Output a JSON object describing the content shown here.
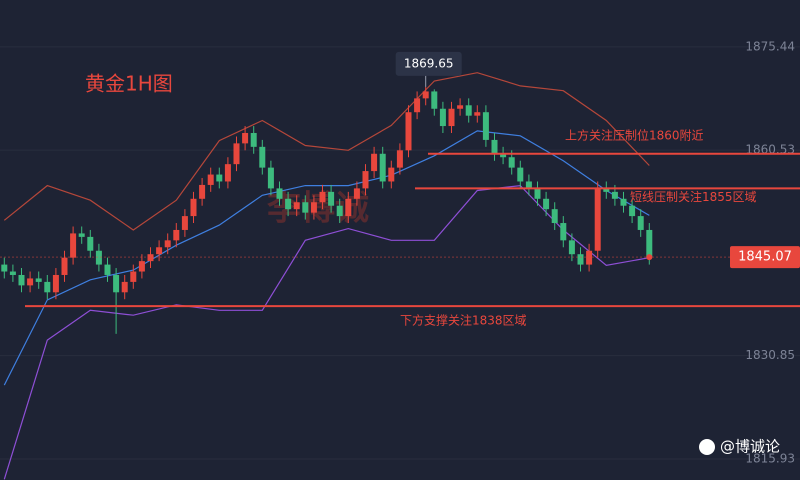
{
  "chart_data": {
    "type": "candlestick",
    "title": "黄金1H图",
    "watermark": "李博诚",
    "footer": "@博诚论",
    "up_color": "#e8473d",
    "down_color": "#3dbb7e",
    "open": [
      1844.0,
      1843.0,
      1842.5,
      1841.0,
      1842.0,
      1841.5,
      1840.0,
      1842.5,
      1845.0,
      1848.5,
      1848.0,
      1846.0,
      1844.0,
      1842.5,
      1840.0,
      1841.5,
      1843.0,
      1844.5,
      1845.5,
      1846.5,
      1847.5,
      1849.0,
      1851.0,
      1853.5,
      1855.5,
      1857.0,
      1856.0,
      1858.5,
      1861.5,
      1863.0,
      1861.0,
      1858.0,
      1855.0,
      1853.5,
      1852.0,
      1853.0,
      1851.5,
      1853.0,
      1854.5,
      1852.5,
      1851.0,
      1853.5,
      1855.0,
      1857.5,
      1860.0,
      1856.0,
      1858.0,
      1860.5,
      1866.0,
      1868.0,
      1869.0,
      1866.5,
      1864.0,
      1866.5,
      1867.0,
      1865.5,
      1866.0,
      1862.0,
      1860.0,
      1859.5,
      1858.0,
      1856.0,
      1855.0,
      1853.5,
      1852.0,
      1850.0,
      1847.5,
      1845.5,
      1844.0,
      1846.0,
      1855.0,
      1854.5,
      1853.5,
      1852.5,
      1851.0,
      1849.0
    ],
    "high": [
      1845.0,
      1844.0,
      1843.5,
      1843.0,
      1843.0,
      1842.5,
      1843.5,
      1846.0,
      1849.5,
      1849.5,
      1849.0,
      1847.0,
      1845.0,
      1843.5,
      1842.5,
      1844.0,
      1845.5,
      1846.5,
      1847.5,
      1848.5,
      1850.0,
      1852.0,
      1854.5,
      1856.5,
      1858.0,
      1858.0,
      1859.5,
      1862.5,
      1864.0,
      1864.0,
      1862.0,
      1859.0,
      1856.0,
      1854.5,
      1854.0,
      1854.0,
      1854.0,
      1855.5,
      1855.5,
      1853.5,
      1854.5,
      1856.0,
      1858.5,
      1861.0,
      1861.0,
      1859.0,
      1861.5,
      1867.0,
      1869.0,
      1869.65,
      1869.3,
      1867.5,
      1867.5,
      1868.0,
      1868.0,
      1867.0,
      1867.0,
      1863.0,
      1861.0,
      1860.5,
      1859.0,
      1857.0,
      1856.0,
      1854.5,
      1853.0,
      1851.0,
      1848.5,
      1846.5,
      1847.0,
      1856.0,
      1856.0,
      1855.5,
      1854.5,
      1853.5,
      1852.0,
      1850.0
    ],
    "low": [
      1842.0,
      1841.5,
      1840.0,
      1840.0,
      1840.5,
      1839.0,
      1839.0,
      1841.5,
      1844.0,
      1847.0,
      1845.0,
      1843.0,
      1841.5,
      1834.0,
      1839.0,
      1840.5,
      1842.0,
      1843.5,
      1844.5,
      1845.5,
      1846.5,
      1848.0,
      1850.0,
      1852.5,
      1854.5,
      1855.0,
      1855.0,
      1857.5,
      1860.5,
      1860.0,
      1857.0,
      1854.0,
      1852.5,
      1851.0,
      1851.0,
      1850.5,
      1850.5,
      1852.0,
      1851.5,
      1850.0,
      1850.0,
      1852.5,
      1854.0,
      1856.5,
      1855.0,
      1855.0,
      1857.0,
      1859.5,
      1865.0,
      1867.0,
      1865.5,
      1863.0,
      1863.0,
      1865.5,
      1864.5,
      1864.5,
      1861.0,
      1859.0,
      1858.5,
      1857.0,
      1855.0,
      1854.0,
      1852.5,
      1851.0,
      1849.0,
      1846.5,
      1844.5,
      1843.0,
      1843.0,
      1845.0,
      1853.5,
      1852.5,
      1851.5,
      1850.0,
      1848.0,
      1844.0
    ],
    "close": [
      1843.0,
      1842.5,
      1841.0,
      1842.0,
      1841.5,
      1840.0,
      1842.5,
      1845.0,
      1848.5,
      1848.0,
      1846.0,
      1844.0,
      1842.5,
      1840.0,
      1841.5,
      1843.0,
      1844.5,
      1845.5,
      1846.5,
      1847.5,
      1849.0,
      1851.0,
      1853.5,
      1855.5,
      1857.0,
      1856.0,
      1858.5,
      1861.5,
      1863.0,
      1861.0,
      1858.0,
      1855.0,
      1853.5,
      1852.0,
      1853.0,
      1851.5,
      1853.0,
      1854.5,
      1852.5,
      1851.0,
      1853.5,
      1855.0,
      1857.5,
      1860.0,
      1856.0,
      1858.0,
      1860.5,
      1866.0,
      1868.0,
      1869.0,
      1866.5,
      1864.0,
      1866.5,
      1867.0,
      1865.5,
      1866.0,
      1862.0,
      1860.0,
      1859.5,
      1858.0,
      1856.0,
      1855.0,
      1853.5,
      1852.0,
      1850.0,
      1847.5,
      1845.5,
      1844.0,
      1846.0,
      1855.0,
      1854.5,
      1853.5,
      1852.5,
      1851.0,
      1849.0,
      1845.07
    ],
    "bands": [
      {
        "color": "#b5473a",
        "values": [
          1850.4,
          1855.4,
          1853.3,
          1849.0,
          1853.3,
          1861.9,
          1864.8,
          1861.2,
          1860.5,
          1864.1,
          1870.5,
          1871.7,
          1869.8,
          1869.1,
          1864.8,
          1858.3
        ]
      },
      {
        "color": "#3f7fe0",
        "values": [
          1826.6,
          1838.9,
          1841.8,
          1843.2,
          1846.8,
          1849.7,
          1854.0,
          1855.4,
          1855.4,
          1856.9,
          1859.7,
          1863.3,
          1862.6,
          1859.0,
          1854.7,
          1851.1
        ]
      },
      {
        "color": "#8e4fd6",
        "values": [
          1813.0,
          1833.1,
          1837.4,
          1836.7,
          1838.2,
          1837.4,
          1837.4,
          1847.5,
          1849.2,
          1847.5,
          1847.5,
          1854.7,
          1855.4,
          1849.0,
          1843.9,
          1845.0
        ]
      }
    ],
    "levels": [
      {
        "value": 1860,
        "label": "上方关注压制位1860附近",
        "color": "#e8473d"
      },
      {
        "value": 1855,
        "label": "短线压制关注1855区域",
        "color": "#e8473d"
      },
      {
        "value": 1838,
        "label": "下方支撑关注1838区域",
        "color": "#e8473d"
      }
    ],
    "ylim": [
      1812.9,
      1882.2
    ],
    "yticks": [
      1875.44,
      1860.53,
      1830.85,
      1815.93
    ],
    "grid": true
  }
}
